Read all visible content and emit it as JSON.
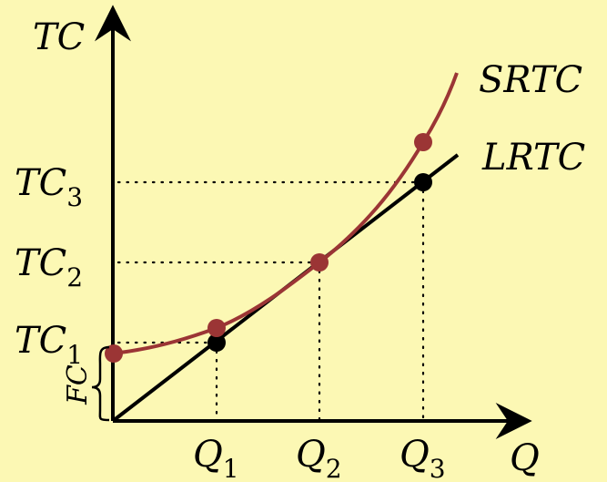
{
  "colors": {
    "background": "#fcf8b4",
    "srtc": "#9b3535",
    "lrtc": "#000000",
    "axis": "#000000"
  },
  "labels": {
    "y_axis": "TC",
    "x_axis": "Q",
    "srtc": "SRTC",
    "lrtc": "LRTC",
    "fixed_cost": "FC",
    "tc": {
      "base": "TC",
      "sub1": "1",
      "sub2": "2",
      "sub3": "3"
    },
    "q": {
      "base": "Q",
      "sub1": "1",
      "sub2": "2",
      "sub3": "3"
    }
  }
}
